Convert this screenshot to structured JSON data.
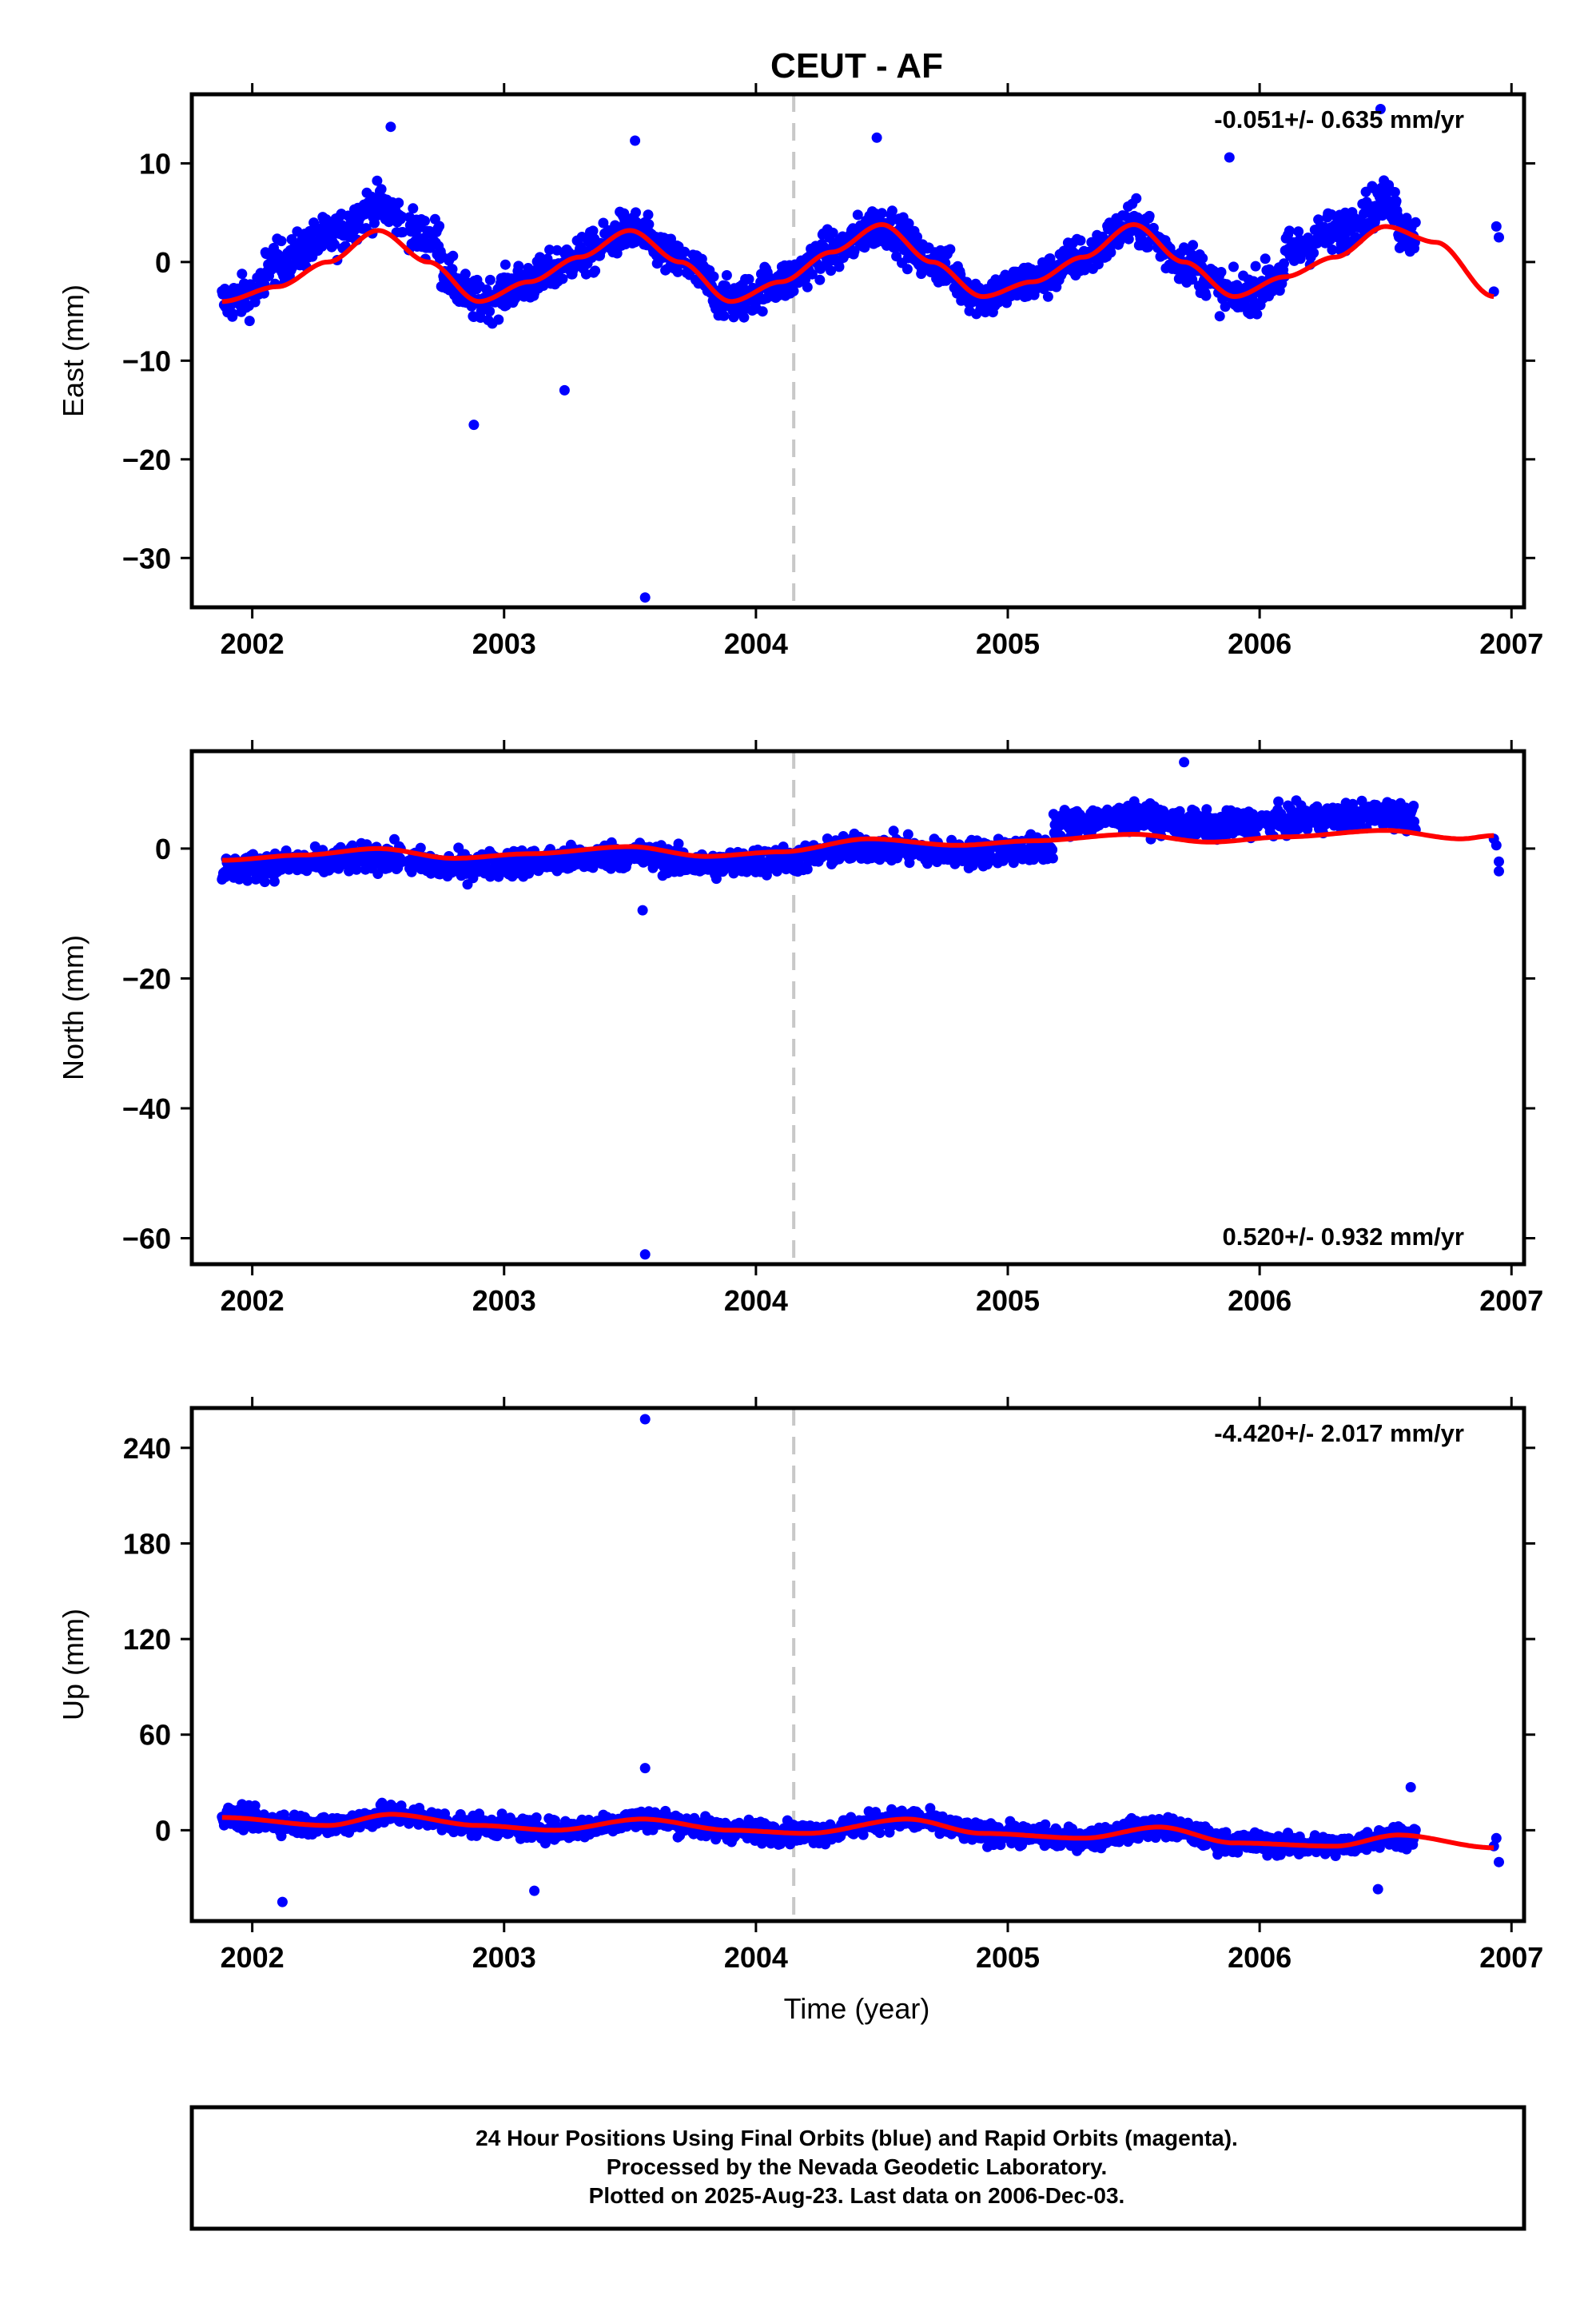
{
  "title": "CEUT - AF",
  "colors": {
    "final": "#0000ff",
    "model": "#ff0000",
    "break": "#c8c8c8",
    "frame": "#000000"
  },
  "xaxis": {
    "label": "Time (year)",
    "ticks": [
      2002,
      2003,
      2004,
      2005,
      2006,
      2007
    ],
    "range": [
      2001.76,
      2007.05
    ]
  },
  "break_epoch": 2004.15,
  "footer": {
    "line1": "24 Hour Positions Using Final Orbits (blue) and Rapid Orbits (magenta).",
    "line2": "Processed by the Nevada Geodetic Laboratory.",
    "line3": "Plotted on 2025-Aug-23. Last data on 2006-Dec-03."
  },
  "chart_data": [
    {
      "type": "scatter",
      "component": "east",
      "ylabel": "East (mm)",
      "velocity_label": "-0.051+/- 0.635 mm/yr",
      "velocity_position": "top-right",
      "ylim": [
        -35,
        17
      ],
      "yticks": [
        10,
        0,
        -10,
        -20,
        -30
      ],
      "data_start": 2001.88,
      "data_end": 2006.62,
      "series": [
        {
          "name": "Final Orbits",
          "color": "#0000ff",
          "points": "daily"
        },
        {
          "name": "Model",
          "color": "#ff0000",
          "x": [
            2001.88,
            2002.1,
            2002.3,
            2002.5,
            2002.7,
            2002.9,
            2003.1,
            2003.3,
            2003.5,
            2003.7,
            2003.9,
            2004.1,
            2004.3,
            2004.5,
            2004.7,
            2004.9,
            2005.1,
            2005.3,
            2005.5,
            2005.7,
            2005.9,
            2006.1,
            2006.3,
            2006.5,
            2006.7,
            2006.93
          ],
          "y": [
            -4.0,
            -2.5,
            0.0,
            3.2,
            0.0,
            -4.0,
            -2.0,
            0.5,
            3.2,
            0.0,
            -4.0,
            -2.0,
            1.0,
            3.8,
            0.0,
            -3.5,
            -2.0,
            0.5,
            3.8,
            0.0,
            -3.5,
            -1.5,
            0.5,
            3.6,
            2.0,
            -3.5
          ]
        },
        {
          "name": "Outliers",
          "x": [
            2003.56,
            2002.88,
            2003.24,
            2003.52,
            2004.48,
            2005.88,
            2006.48,
            2002.55
          ],
          "y": [
            -34,
            -16.5,
            -13,
            12.3,
            12.6,
            10.6,
            15.5,
            13.7
          ]
        }
      ]
    },
    {
      "type": "scatter",
      "component": "north",
      "ylabel": "North (mm)",
      "velocity_label": "0.520+/- 0.932 mm/yr",
      "velocity_position": "bottom-right",
      "ylim": [
        -64,
        15
      ],
      "yticks": [
        0,
        -20,
        -40,
        -60
      ],
      "data_start": 2001.88,
      "data_end": 2006.62,
      "offset_epoch": 2005.18,
      "series": [
        {
          "name": "Final Orbits",
          "color": "#0000ff",
          "points": "daily"
        },
        {
          "name": "Model",
          "color": "#ff0000",
          "x": [
            2001.88,
            2002.2,
            2002.5,
            2002.8,
            2003.1,
            2003.5,
            2003.8,
            2004.1,
            2004.45,
            2004.8,
            2005.1,
            2005.5,
            2005.8,
            2006.1,
            2006.5,
            2006.8,
            2006.93
          ],
          "y": [
            -1.8,
            -1.0,
            0.0,
            -1.5,
            -0.8,
            0.3,
            -1.2,
            -0.5,
            1.5,
            0.5,
            1.2,
            2.2,
            1.0,
            1.8,
            2.8,
            1.5,
            2.0
          ]
        },
        {
          "name": "Outliers",
          "x": [
            2003.56,
            2003.55,
            2005.7,
            2006.95
          ],
          "y": [
            -62.5,
            -9.5,
            13.3,
            -3.5
          ]
        }
      ]
    },
    {
      "type": "scatter",
      "component": "up",
      "ylabel": "Up (mm)",
      "velocity_label": "-4.420+/- 2.017 mm/yr",
      "velocity_position": "top-right",
      "ylim": [
        -57,
        265
      ],
      "yticks": [
        240,
        180,
        120,
        60,
        0
      ],
      "data_start": 2001.88,
      "data_end": 2006.62,
      "series": [
        {
          "name": "Final Orbits",
          "color": "#0000ff",
          "points": "daily"
        },
        {
          "name": "Model",
          "color": "#ff0000",
          "x": [
            2001.88,
            2002.3,
            2002.55,
            2002.9,
            2003.2,
            2003.55,
            2003.9,
            2004.2,
            2004.6,
            2004.9,
            2005.3,
            2005.6,
            2005.9,
            2006.3,
            2006.55,
            2006.93
          ],
          "y": [
            8,
            3,
            10,
            3,
            0,
            7,
            0,
            -2,
            7,
            -2,
            -5,
            2,
            -8,
            -10,
            -3,
            -11
          ]
        },
        {
          "name": "Outliers",
          "x": [
            2003.56,
            2003.56,
            2002.12,
            2003.12,
            2006.47,
            2006.6
          ],
          "y": [
            258,
            39,
            -45,
            -38,
            -37,
            27
          ]
        }
      ]
    }
  ]
}
